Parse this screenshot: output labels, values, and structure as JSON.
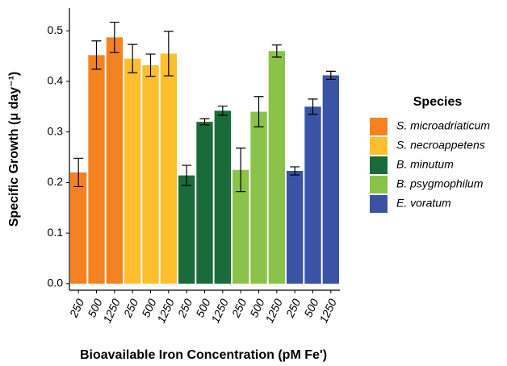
{
  "chart_data": {
    "type": "bar",
    "xlabel": "Bioavailable Iron Concentration (pM Fe')",
    "ylabel": "Specific Growth (μ day⁻¹)",
    "legend_title": "Species",
    "categories": [
      "250",
      "500",
      "1250"
    ],
    "series": [
      {
        "name": "S. microadriaticum",
        "color": "#f58220",
        "values": [
          0.22,
          0.452,
          0.487
        ],
        "errors": [
          0.028,
          0.028,
          0.03
        ]
      },
      {
        "name": "S. necroappetens",
        "color": "#fdbf2d",
        "values": [
          0.445,
          0.432,
          0.455
        ],
        "errors": [
          0.028,
          0.022,
          0.044
        ]
      },
      {
        "name": "B. minutum",
        "color": "#1a6b3a",
        "values": [
          0.214,
          0.32,
          0.342
        ],
        "errors": [
          0.02,
          0.006,
          0.009
        ]
      },
      {
        "name": "B. psygmophilum",
        "color": "#8bc34a",
        "values": [
          0.225,
          0.34,
          0.46
        ],
        "errors": [
          0.043,
          0.03,
          0.012
        ]
      },
      {
        "name": "E. voratum",
        "color": "#3a53a4",
        "values": [
          0.223,
          0.35,
          0.412
        ],
        "errors": [
          0.008,
          0.015,
          0.008
        ]
      }
    ],
    "ylim": [
      -0.013,
      0.545
    ],
    "yticks": [
      {
        "value": 0,
        "label": "0.0"
      },
      0.1,
      0.2,
      0.3,
      0.4,
      0.5
    ],
    "legend_position": "right"
  }
}
